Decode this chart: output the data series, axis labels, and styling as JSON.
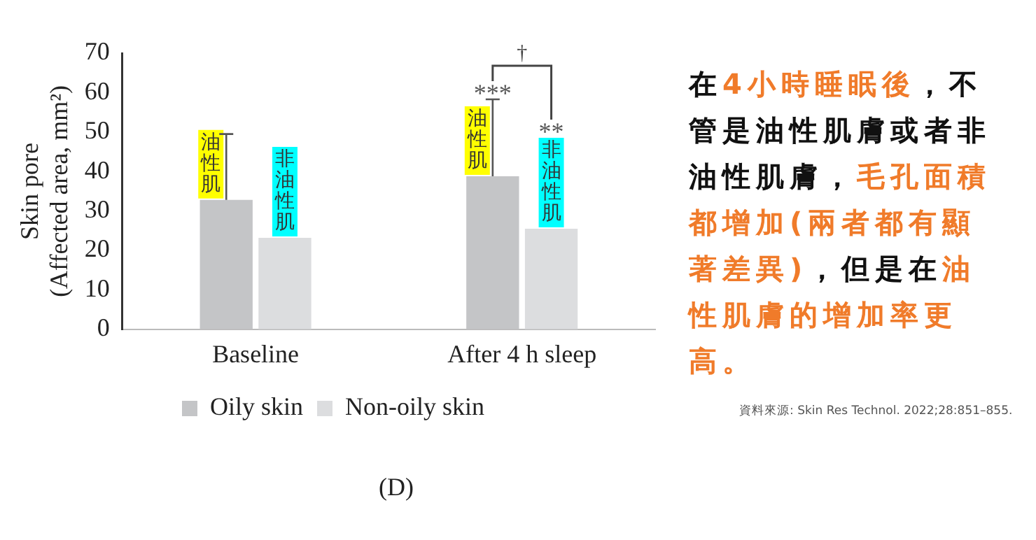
{
  "chart_data": {
    "type": "bar",
    "ylabel": "Skin pore\n(Affected area, mm²)",
    "categories": [
      "Baseline",
      "After 4 h sleep"
    ],
    "series": [
      {
        "name": "Oily skin",
        "color": "#c4c5c7",
        "values": [
          32.8,
          38.8
        ],
        "errors": [
          [
            32.8,
            49.5
          ],
          [
            38.8,
            58.3
          ]
        ]
      },
      {
        "name": "Non-oily skin",
        "color": "#dcdddf",
        "values": [
          23.2,
          25.5
        ],
        "errors": [
          null,
          null
        ]
      }
    ],
    "ylim": [
      0,
      70
    ],
    "yticks": [
      0,
      10,
      20,
      30,
      40,
      50,
      60,
      70
    ],
    "legend": "bottom",
    "annotations": [
      "油性肌",
      "非油性肌",
      "油性肌",
      "非油性肌",
      "***",
      "**",
      "†",
      "在",
      "4小時睡眠後",
      "，不管是油性肌膚或者非油性肌膚，",
      "毛孔面積都增加(兩者都有顯著差異)",
      "，但是在",
      "油性肌膚的增加率更高。",
      "資料來源: Skin Res Technol. 2022;28:851–855.",
      "(D)"
    ]
  }
}
